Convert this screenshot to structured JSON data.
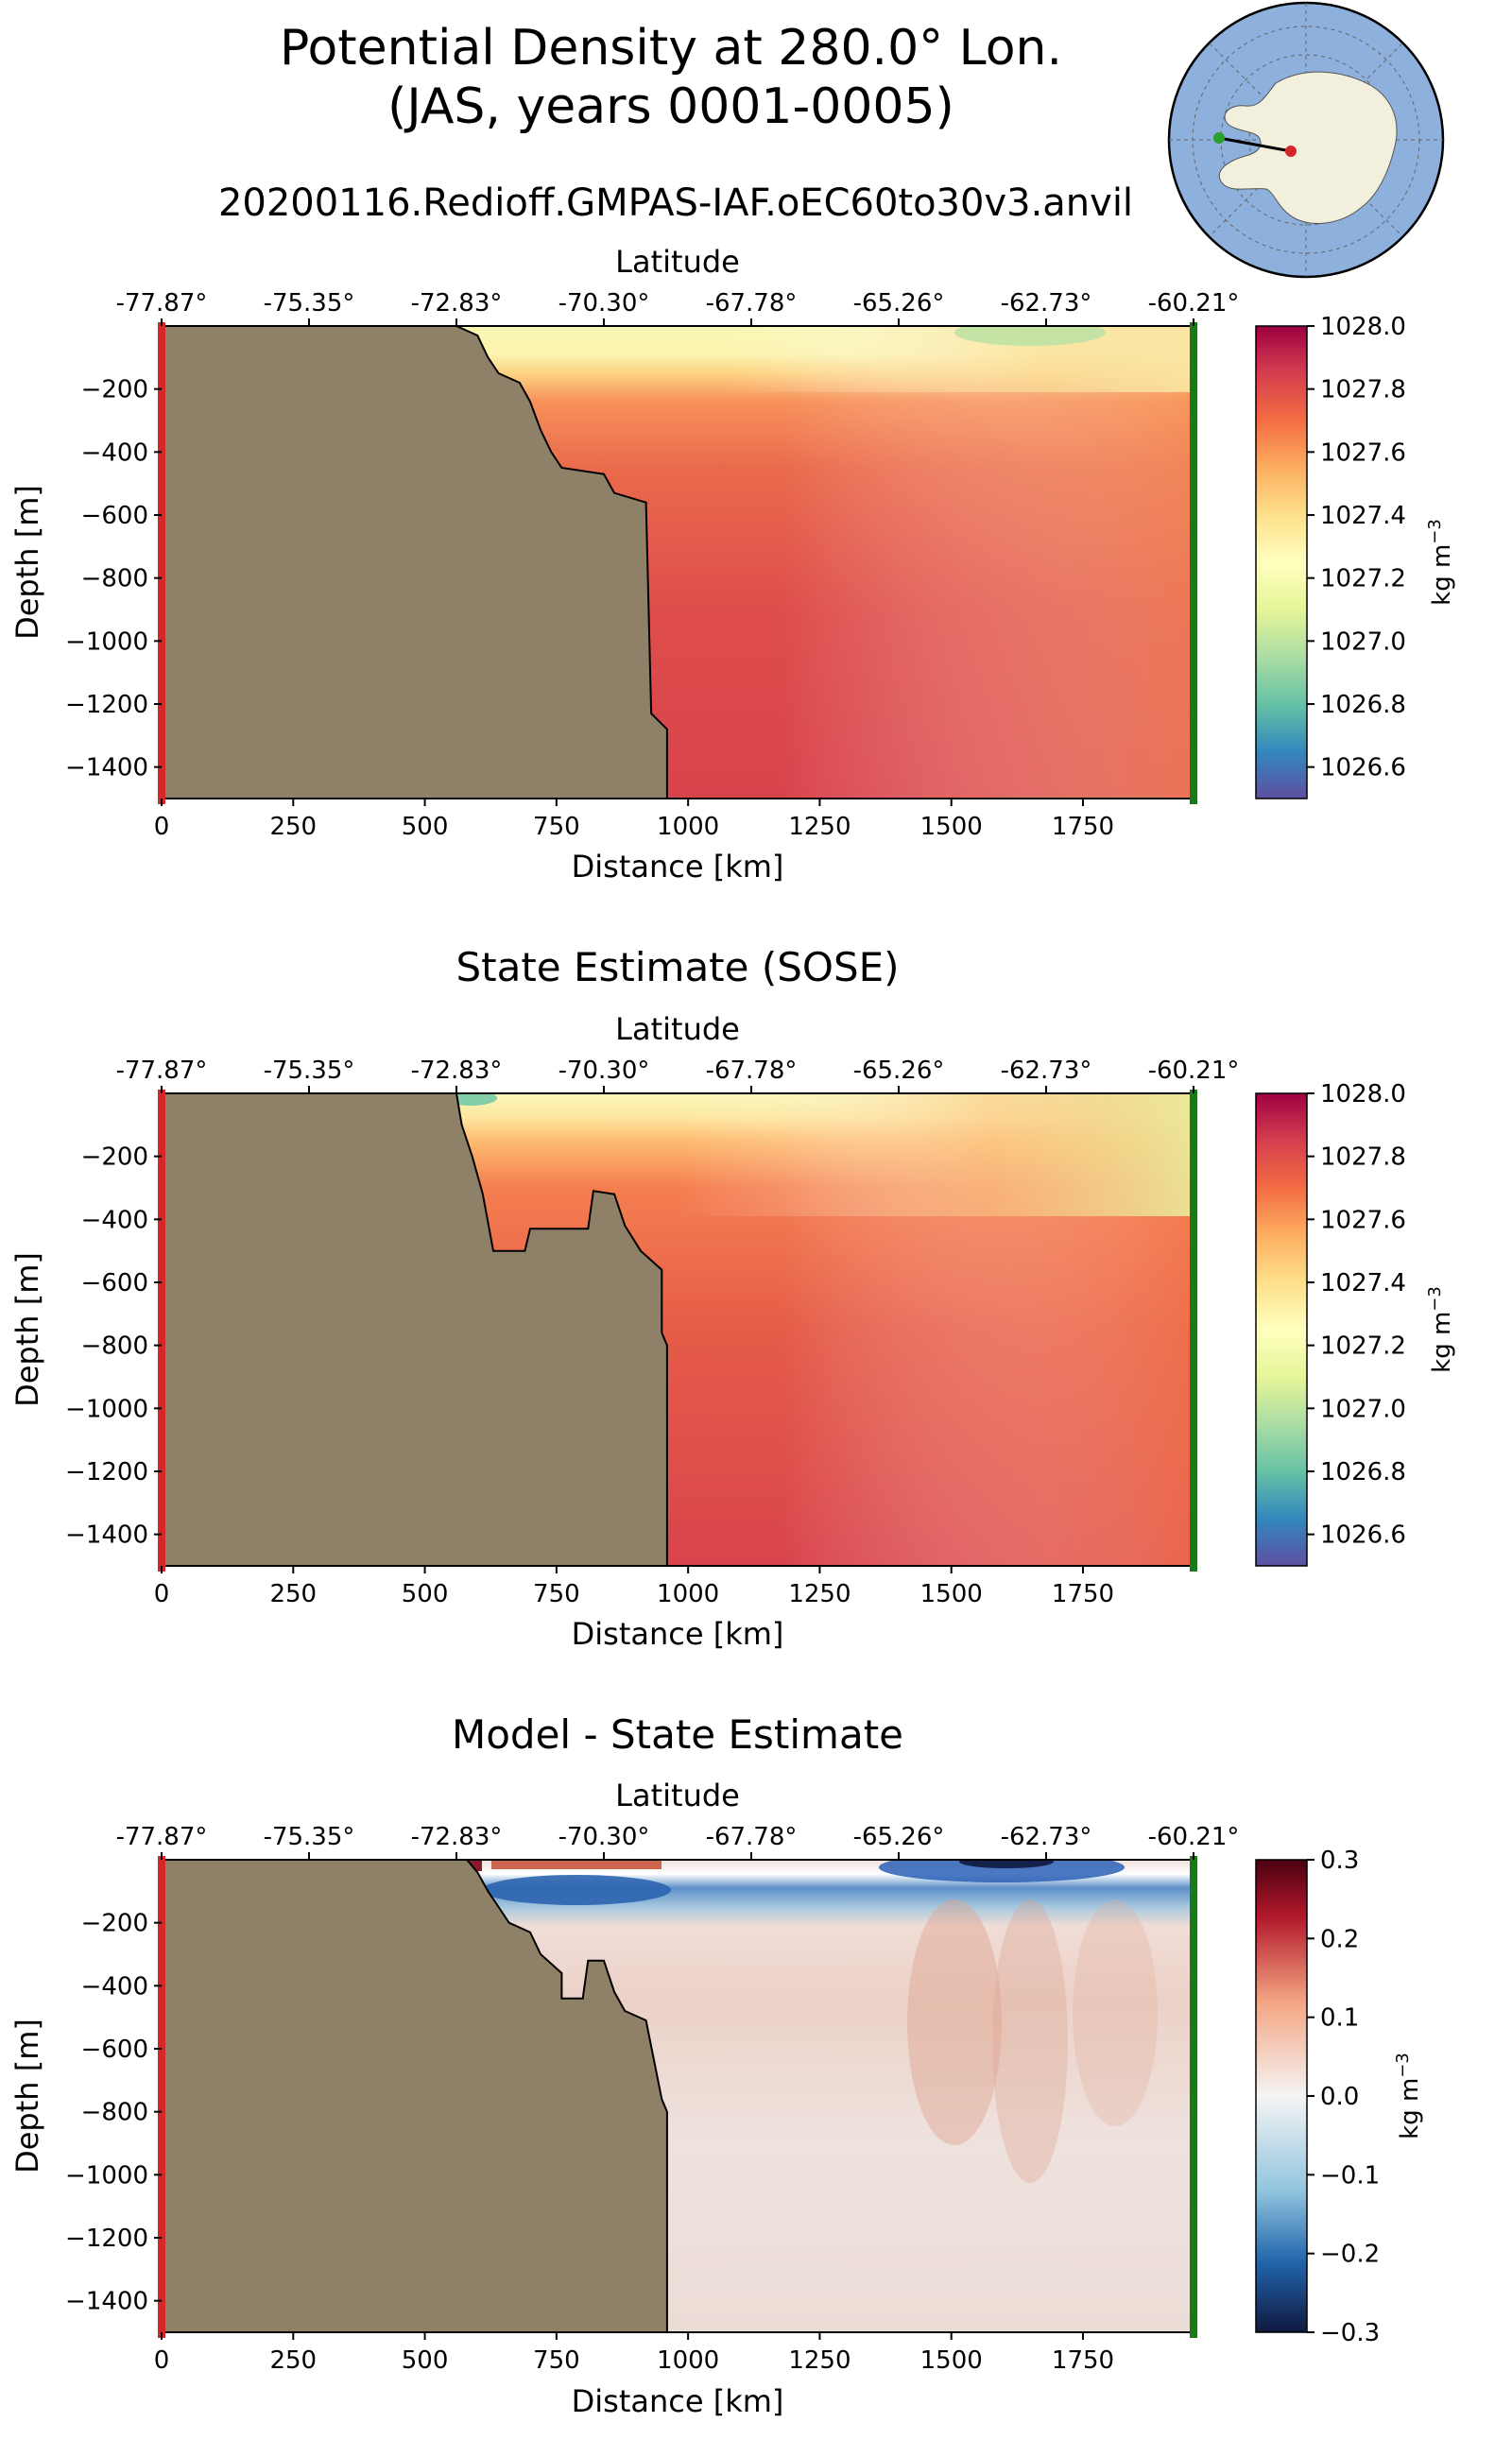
{
  "figure": {
    "title_line1": "Potential Density at 280.0° Lon.",
    "title_line2": "(JAS, years 0001-0005)",
    "subtitle": "20200116.Redioff.GMPAS-IAF.oEC60to30v3.anvil"
  },
  "colors": {
    "land": "#8f8167",
    "start_marker": "#d62728",
    "end_marker": "#1a7a1a",
    "map_ocean": "#8eb0dd",
    "map_land": "#f2efdd"
  },
  "inset_map": {
    "description_icon": "antarctica-polar-map-icon",
    "start_point_color": "#2ca02c",
    "end_point_color": "#d62728"
  },
  "chart_data": [
    {
      "type": "heatmap",
      "title": "",
      "xlabel": "Distance [km]",
      "top_xlabel": "Latitude",
      "ylabel": "Depth [m]",
      "xlim": [
        0,
        1960
      ],
      "ylim": [
        -1500,
        0
      ],
      "xticks": [
        0,
        250,
        500,
        750,
        1000,
        1250,
        1500,
        1750
      ],
      "yticks": [
        -200,
        -400,
        -600,
        -800,
        -1000,
        -1200,
        -1400
      ],
      "latitude_ticks": [
        "-77.87°",
        "-75.35°",
        "-72.83°",
        "-70.30°",
        "-67.78°",
        "-65.26°",
        "-62.73°",
        "-60.21°"
      ],
      "colorbar": {
        "label": "kg m",
        "label_exp": "−3",
        "vmin": 1026.5,
        "vmax": 1028.0,
        "ticks": [
          "1028.0",
          "1027.8",
          "1027.6",
          "1027.4",
          "1027.2",
          "1027.0",
          "1026.8",
          "1026.6"
        ],
        "colormap": "Spectral_r"
      },
      "bathymetry_km_depth": [
        [
          0,
          0
        ],
        [
          560,
          0
        ],
        [
          600,
          -30
        ],
        [
          620,
          -100
        ],
        [
          640,
          -150
        ],
        [
          680,
          -180
        ],
        [
          700,
          -240
        ],
        [
          720,
          -330
        ],
        [
          740,
          -400
        ],
        [
          760,
          -450
        ],
        [
          840,
          -470
        ],
        [
          860,
          -530
        ],
        [
          920,
          -560
        ],
        [
          930,
          -1230
        ],
        [
          960,
          -1280
        ],
        [
          960,
          -1500
        ]
      ],
      "field_summary": "surface light 1027.0-1027.2 layer above ~100 m, interior 1027.7-1027.8 decreasing offshore to ~1027.6"
    },
    {
      "type": "heatmap",
      "title": "State Estimate (SOSE)",
      "xlabel": "Distance [km]",
      "top_xlabel": "Latitude",
      "ylabel": "Depth [m]",
      "xlim": [
        0,
        1960
      ],
      "ylim": [
        -1500,
        0
      ],
      "xticks": [
        0,
        250,
        500,
        750,
        1000,
        1250,
        1500,
        1750
      ],
      "yticks": [
        -200,
        -400,
        -600,
        -800,
        -1000,
        -1200,
        -1400
      ],
      "latitude_ticks": [
        "-77.87°",
        "-75.35°",
        "-72.83°",
        "-70.30°",
        "-67.78°",
        "-65.26°",
        "-62.73°",
        "-60.21°"
      ],
      "colorbar": {
        "label": "kg m",
        "label_exp": "−3",
        "vmin": 1026.5,
        "vmax": 1028.0,
        "ticks": [
          "1028.0",
          "1027.8",
          "1027.6",
          "1027.4",
          "1027.2",
          "1027.0",
          "1026.8",
          "1026.6"
        ],
        "colormap": "Spectral_r"
      },
      "bathymetry_km_depth": [
        [
          0,
          0
        ],
        [
          560,
          0
        ],
        [
          570,
          -100
        ],
        [
          590,
          -200
        ],
        [
          610,
          -320
        ],
        [
          630,
          -500
        ],
        [
          690,
          -500
        ],
        [
          700,
          -430
        ],
        [
          810,
          -430
        ],
        [
          820,
          -310
        ],
        [
          860,
          -320
        ],
        [
          880,
          -420
        ],
        [
          910,
          -500
        ],
        [
          950,
          -560
        ],
        [
          950,
          -760
        ],
        [
          960,
          -800
        ],
        [
          960,
          -1500
        ]
      ],
      "field_summary": "thin light surface layer, interior 1027.6-1027.8, offshore surface 1027.0"
    },
    {
      "type": "heatmap",
      "title": "Model - State Estimate",
      "xlabel": "Distance [km]",
      "top_xlabel": "Latitude",
      "ylabel": "Depth [m]",
      "xlim": [
        0,
        1960
      ],
      "ylim": [
        -1500,
        0
      ],
      "xticks": [
        0,
        250,
        500,
        750,
        1000,
        1250,
        1500,
        1750
      ],
      "yticks": [
        -200,
        -400,
        -600,
        -800,
        -1000,
        -1200,
        -1400
      ],
      "latitude_ticks": [
        "-77.87°",
        "-75.35°",
        "-72.83°",
        "-70.30°",
        "-67.78°",
        "-65.26°",
        "-62.73°",
        "-60.21°"
      ],
      "colorbar": {
        "label": "kg m",
        "label_exp": "−3",
        "vmin": -0.3,
        "vmax": 0.3,
        "ticks": [
          "0.3",
          "0.2",
          "0.1",
          "0.0",
          "−0.1",
          "−0.2",
          "−0.3"
        ],
        "colormap": "RdBu_r"
      },
      "bathymetry_km_depth": [
        [
          0,
          0
        ],
        [
          580,
          0
        ],
        [
          600,
          -40
        ],
        [
          620,
          -100
        ],
        [
          640,
          -150
        ],
        [
          660,
          -200
        ],
        [
          700,
          -230
        ],
        [
          720,
          -300
        ],
        [
          760,
          -360
        ],
        [
          760,
          -440
        ],
        [
          800,
          -440
        ],
        [
          810,
          -320
        ],
        [
          840,
          -320
        ],
        [
          860,
          -420
        ],
        [
          880,
          -480
        ],
        [
          920,
          -510
        ],
        [
          950,
          -760
        ],
        [
          960,
          -800
        ],
        [
          960,
          -1500
        ]
      ],
      "field_summary": "near-surface negative (-0.2 to -0.3) band at 50-120 m, positive 0.05-0.1 below, positive 0.2 at surface near shelf"
    }
  ]
}
